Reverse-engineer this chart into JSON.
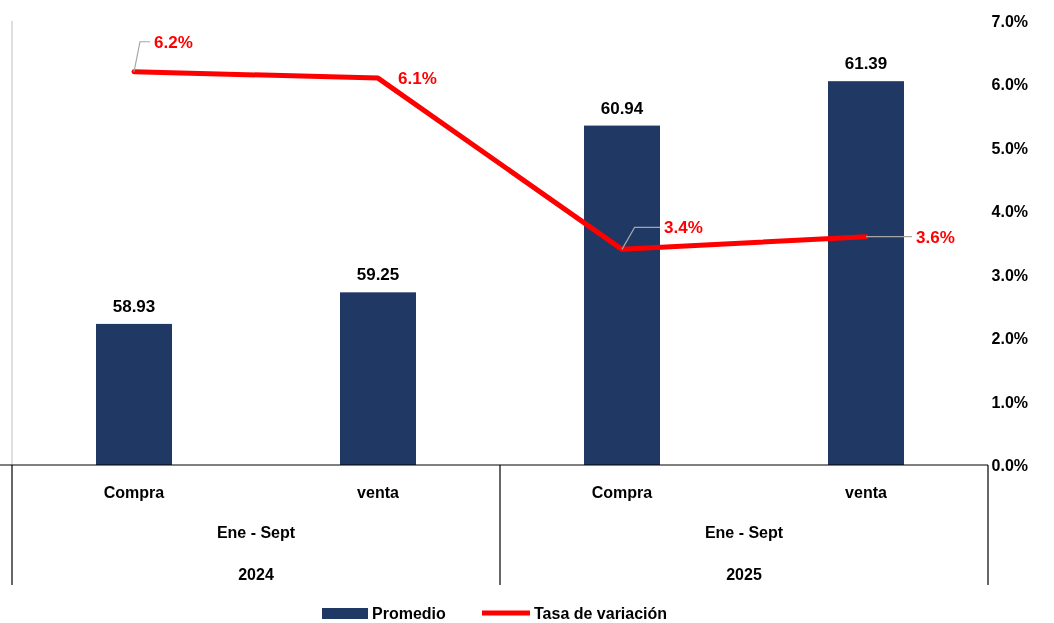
{
  "chart_data": {
    "type": "bar",
    "categories": [
      "Compra",
      "venta",
      "Compra",
      "venta"
    ],
    "annotations": [
      "Ene - Sept",
      "2024",
      "Ene - Sept",
      "2025"
    ],
    "ylim": [
      57.5,
      62
    ],
    "y2lim": [
      0,
      7
    ],
    "y2ticks": [
      {
        "value": 0,
        "label": "0.0%"
      },
      {
        "value": 1,
        "label": "1.0%"
      },
      {
        "value": 2,
        "label": "2.0%"
      },
      {
        "value": 3,
        "label": "3.0%"
      },
      {
        "value": 4,
        "label": "4.0%"
      },
      {
        "value": 5,
        "label": "5.0%"
      },
      {
        "value": 6,
        "label": "6.0%"
      },
      {
        "value": 7,
        "label": "7.0%"
      }
    ],
    "series": [
      {
        "name": "Promedio",
        "color": "#1f3864",
        "values": [
          58.93,
          59.25,
          60.94,
          61.39
        ],
        "value_labels": [
          "58.93",
          "59.25",
          "60.94",
          "61.39"
        ]
      },
      {
        "name": "Tasa de variación",
        "type": "line",
        "axis": "y2",
        "color": "#ff0000",
        "values": [
          6.2,
          6.1,
          3.4,
          3.6
        ],
        "value_labels": [
          "6.2%",
          "6.1%",
          "3.4%",
          "3.6%"
        ]
      }
    ],
    "grid": false,
    "legend": "bottom",
    "marker": "none",
    "line_style": "solid"
  }
}
